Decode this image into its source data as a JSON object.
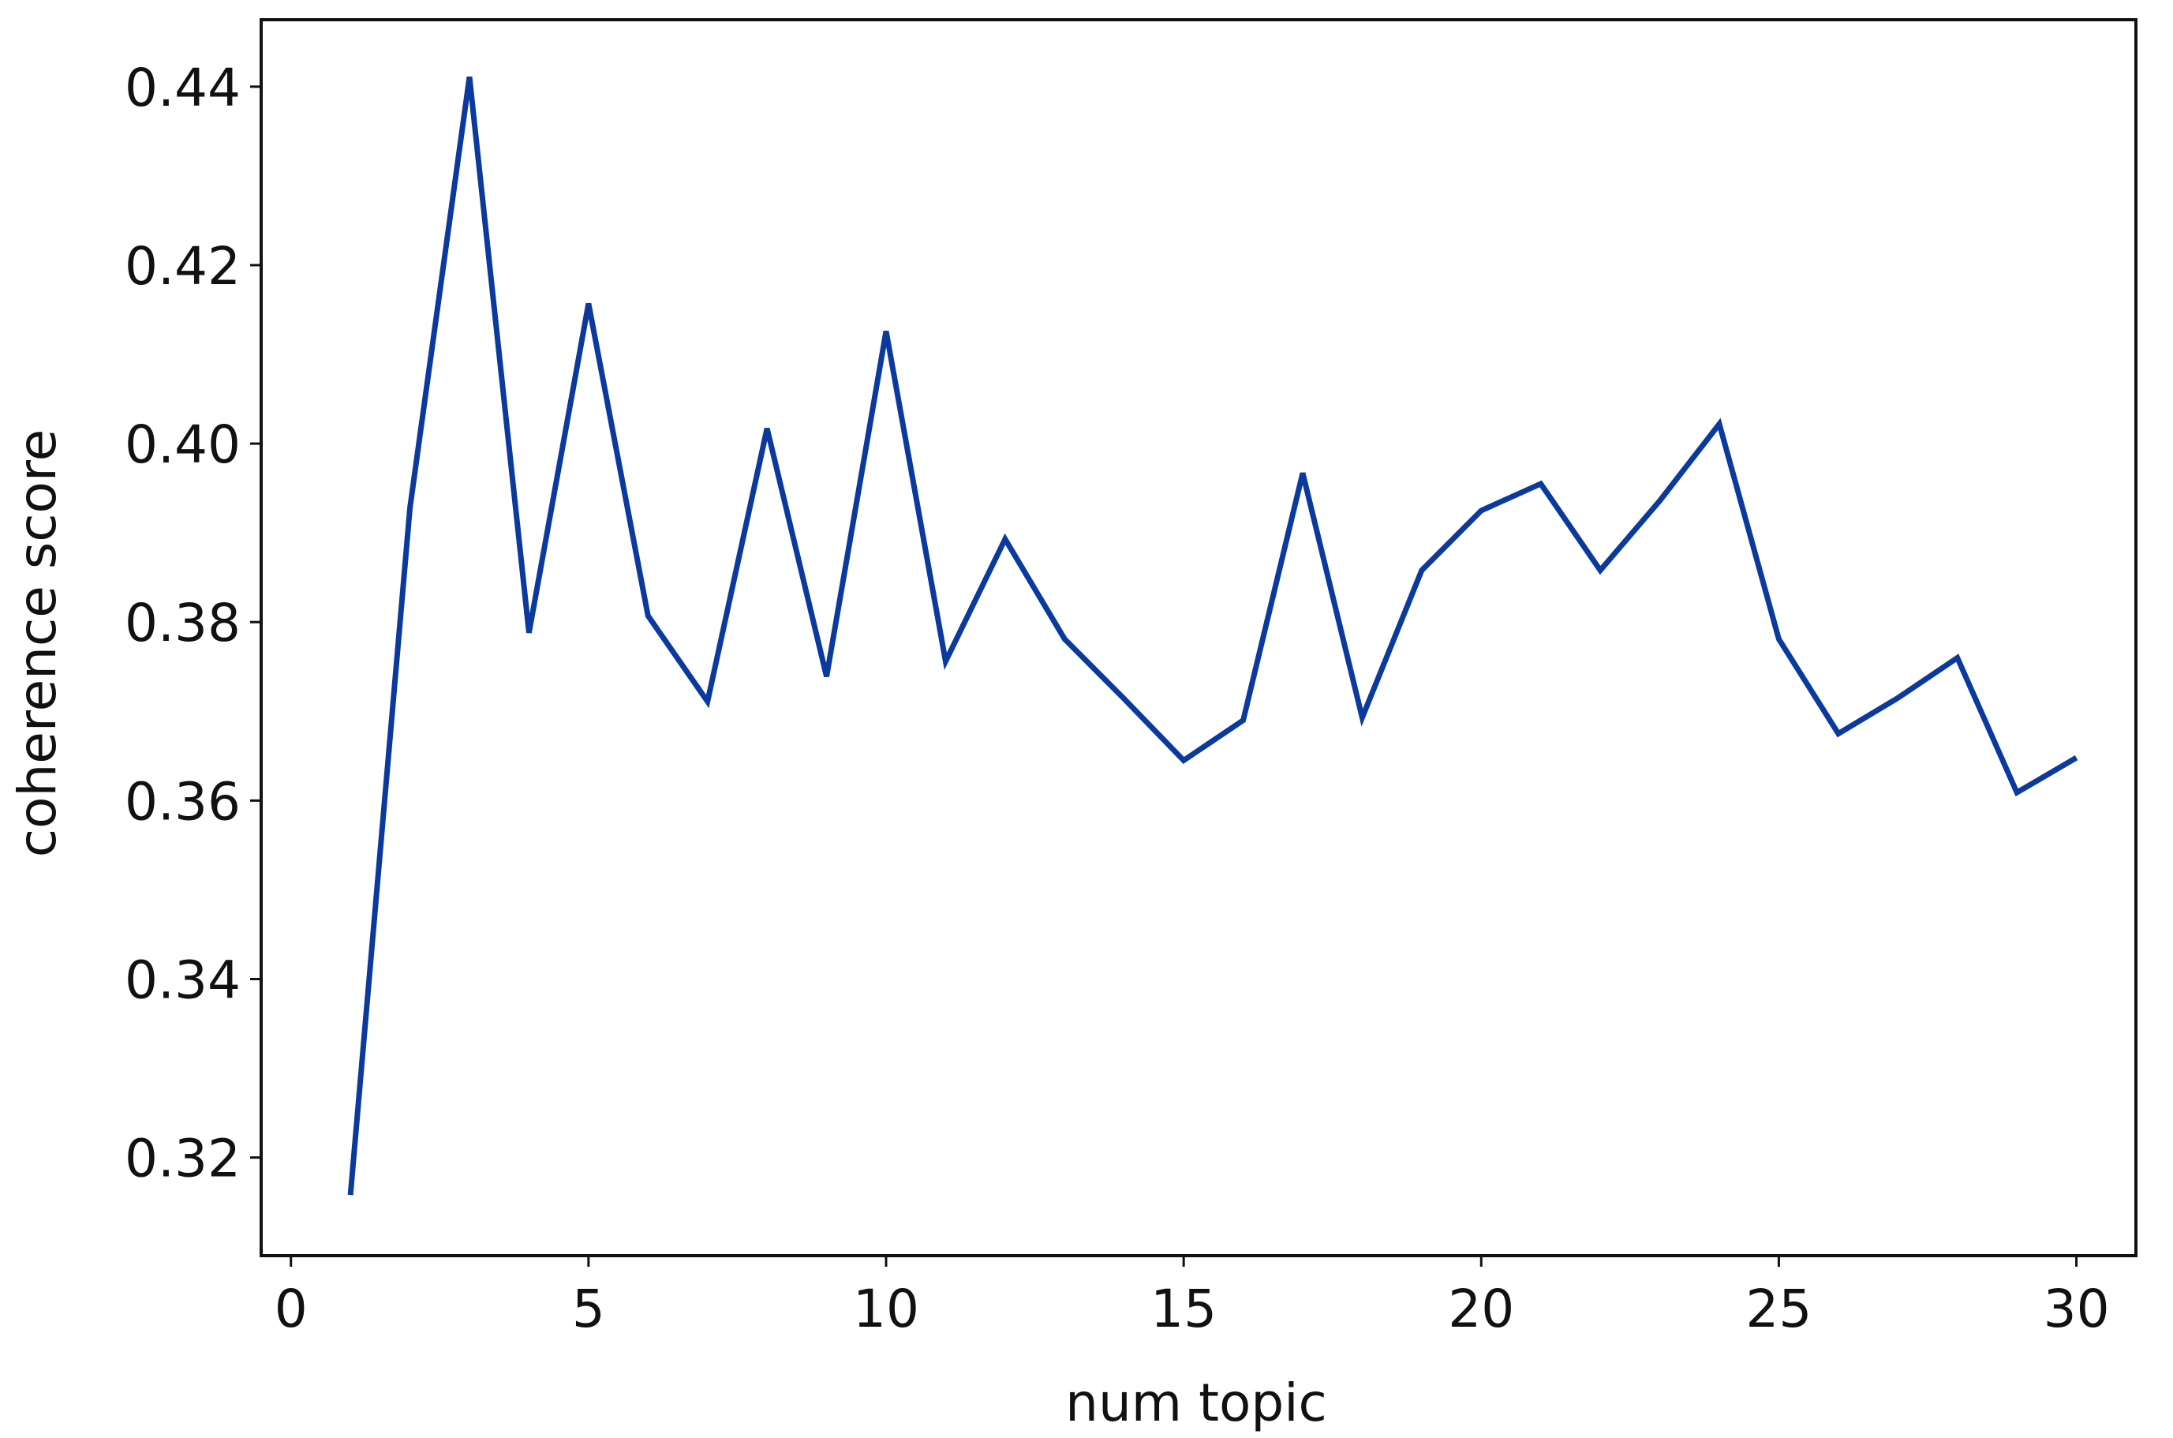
{
  "chart_data": {
    "type": "line",
    "x_label": "num topic",
    "y_label": "coherence score",
    "x": [
      1,
      2,
      3,
      4,
      5,
      6,
      7,
      8,
      9,
      10,
      11,
      12,
      13,
      14,
      15,
      16,
      17,
      18,
      19,
      20,
      21,
      22,
      23,
      24,
      25,
      26,
      27,
      28,
      29,
      30
    ],
    "series": [
      {
        "color": "#0b3a9e",
        "values": [
          0.3158,
          0.3928,
          0.4411,
          0.3788,
          0.4157,
          0.3807,
          0.3711,
          0.4017,
          0.3739,
          0.4126,
          0.3756,
          0.3893,
          0.3781,
          0.3714,
          0.3645,
          0.369,
          0.3967,
          0.3693,
          0.3858,
          0.3925,
          0.3955,
          0.3858,
          0.3936,
          0.4022,
          0.3781,
          0.3675,
          0.3715,
          0.376,
          0.3609,
          0.3648
        ]
      }
    ],
    "xlim": [
      -0.5,
      31.0
    ],
    "xticks": [
      0,
      5,
      10,
      15,
      20,
      25,
      30
    ],
    "ylim": [
      0.309,
      0.4475
    ],
    "yticks": [
      0.32,
      0.34,
      0.36,
      0.38,
      {
        "value": 0.4,
        "label": "0.40"
      },
      0.42,
      0.44
    ],
    "grid": false
  }
}
